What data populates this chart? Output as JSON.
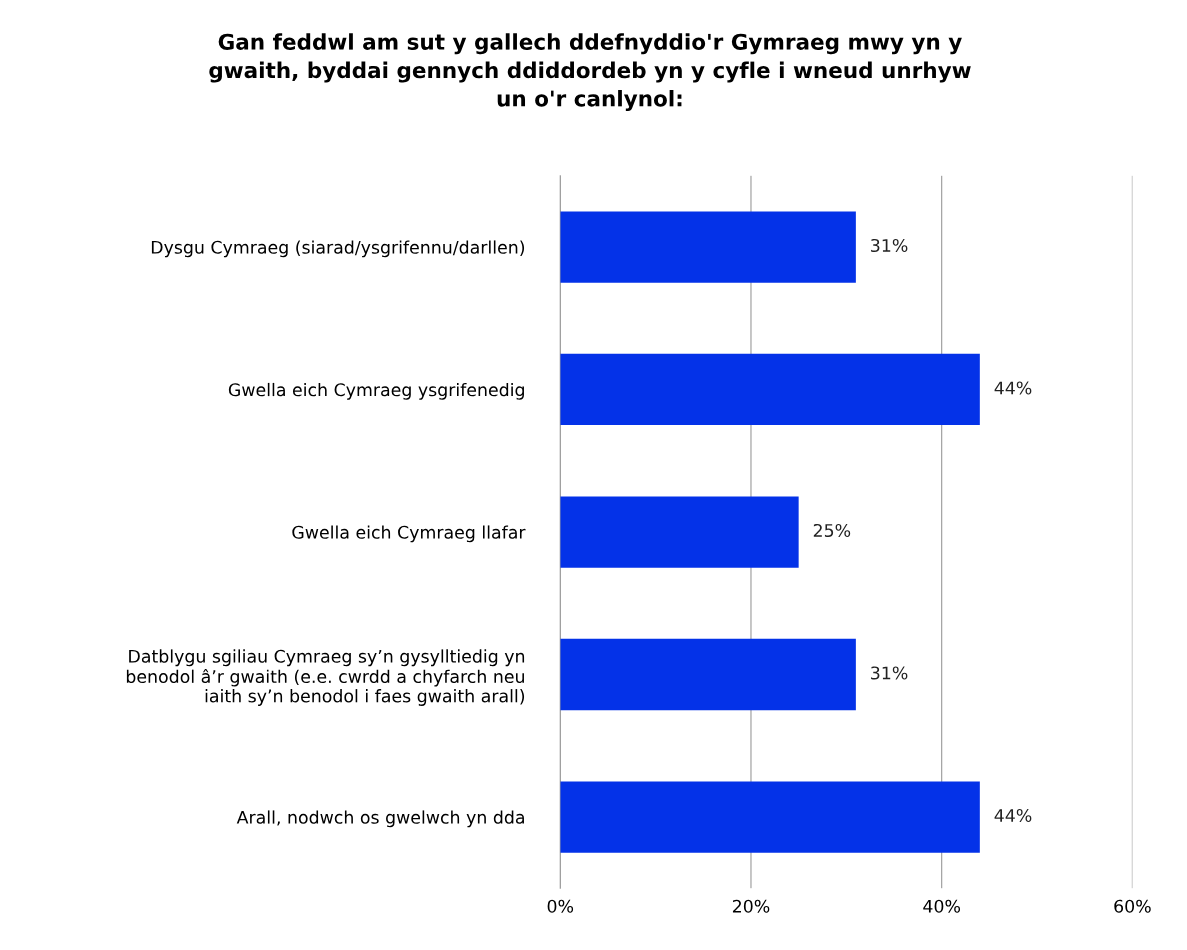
{
  "chart_data": {
    "type": "bar",
    "orientation": "horizontal",
    "title": "Gan feddwl am sut y gallech ddefnyddio'r Gymraeg mwy yn y\ngwaith, byddai gennych ddiddordeb yn y cyfle i wneud unrhyw\nun o'r canlynol:",
    "categories": [
      "Dysgu Cymraeg (siarad/ysgrifennu/darllen)",
      "Gwella eich Cymraeg ysgrifenedig",
      "Gwella eich Cymraeg llafar",
      "Datblygu sgiliau Cymraeg sy’n gysylltiedig yn\nbenodol â’r gwaith (e.e. cwrdd a chyfarch neu\niaith sy’n benodol i faes gwaith arall)",
      "Arall, nodwch os gwelwch yn dda"
    ],
    "values": [
      31,
      44,
      25,
      31,
      44
    ],
    "value_labels": [
      "31%",
      "44%",
      "25%",
      "31%",
      "44%"
    ],
    "color": "#0432e8",
    "xlim": [
      0,
      60
    ],
    "xticks": [
      {
        "value": 0,
        "label": "0%"
      },
      {
        "value": 20,
        "label": "20%"
      },
      {
        "value": 40,
        "label": "40%"
      },
      {
        "value": 60,
        "label": "60%"
      }
    ],
    "grid": "x",
    "legend": false
  }
}
